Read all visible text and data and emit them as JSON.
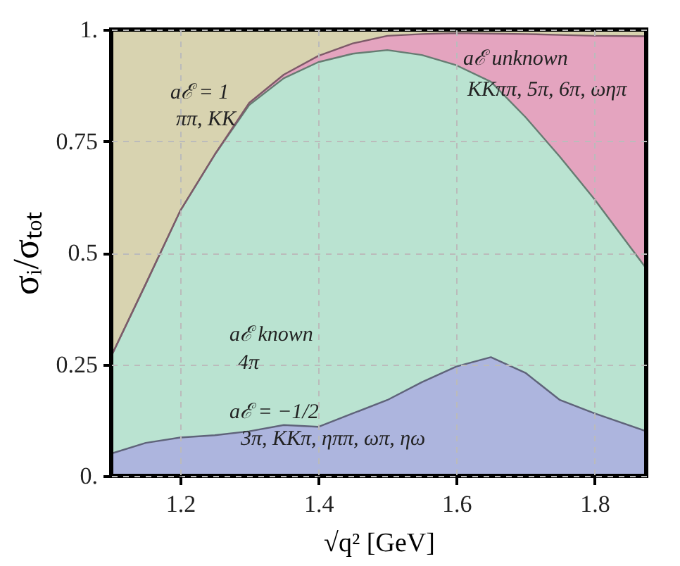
{
  "chart_data": {
    "type": "area",
    "stacked": true,
    "xlabel": "√q² [GeV]",
    "ylabel": "σᵢ/σₜₒₜ",
    "x": [
      1.1,
      1.15,
      1.2,
      1.25,
      1.3,
      1.35,
      1.4,
      1.45,
      1.5,
      1.55,
      1.6,
      1.65,
      1.7,
      1.75,
      1.8,
      1.875
    ],
    "series": [
      {
        "color": "#adb5de",
        "values": [
          0.05,
          0.074,
          0.086,
          0.091,
          0.1,
          0.114,
          0.11,
          0.14,
          0.17,
          0.21,
          0.245,
          0.266,
          0.231,
          0.17,
          0.14,
          0.1
        ]
      },
      {
        "color": "#bae3d1",
        "values": [
          0.218,
          0.356,
          0.508,
          0.629,
          0.731,
          0.777,
          0.817,
          0.806,
          0.784,
          0.733,
          0.675,
          0.617,
          0.573,
          0.545,
          0.48,
          0.365
        ]
      },
      {
        "color": "#e4a4bf",
        "values": [
          0,
          0,
          0,
          0,
          0.005,
          0.008,
          0.014,
          0.023,
          0.032,
          0.047,
          0.072,
          0.108,
          0.186,
          0.273,
          0.366,
          0.52
        ]
      },
      {
        "color": "#d8d3b0",
        "values": [
          0.732,
          0.57,
          0.406,
          0.28,
          0.164,
          0.101,
          0.059,
          0.031,
          0.014,
          0.01,
          0.008,
          0.009,
          0.01,
          0.012,
          0.014,
          0.015
        ]
      }
    ],
    "xlim": [
      1.1,
      1.875
    ],
    "xticks": [
      1.2,
      1.4,
      1.6,
      1.8
    ],
    "ylim": [
      0,
      1
    ],
    "yticks": [
      {
        "value": 0,
        "label": "0."
      },
      0.25,
      0.5,
      0.75,
      {
        "value": 1,
        "label": "1."
      }
    ],
    "grid": true,
    "legend": false,
    "annotations": [
      "aℰ = 1",
      "ππ, KK",
      "aℰ unknown",
      "KKππ, 5π, 6π, ωηπ",
      "aℰ known",
      "4π",
      "aℰ = −1/2",
      "3π, KKπ, ηππ, ωπ, ηω"
    ]
  }
}
